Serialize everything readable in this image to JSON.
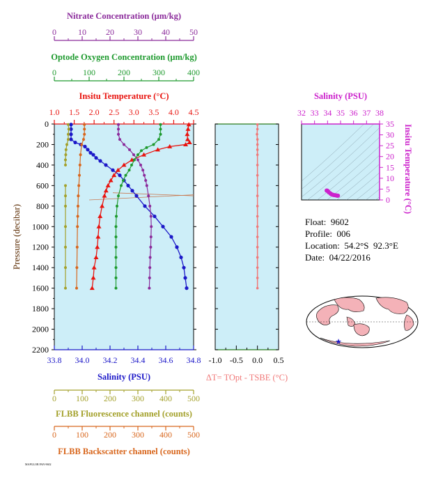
{
  "colors": {
    "nitrate": "#8b2b9b",
    "oxygen": "#1e9a2e",
    "temperature": "#e8140f",
    "salinity": "#1c18c8",
    "fluorescence": "#a3a02a",
    "backscatter": "#d8661c",
    "delta_t": "#f07878",
    "ts_frame": "#cc22cc",
    "panel_bg": "#cdeef8"
  },
  "info": {
    "float": "Float:  9602",
    "profile": "Profile:  006",
    "location": "Location:  54.2°S  92.3°E",
    "date": "Date:  04/22/2016"
  },
  "footer_text": "MAPGLOB PAN-9602",
  "chart_data": [
    {
      "type": "line",
      "ylabel": "Pressure (decibar)",
      "yticks": [
        "0",
        "200",
        "400",
        "600",
        "800",
        "1000",
        "1200",
        "1400",
        "1600",
        "1800",
        "2000",
        "2200"
      ],
      "ylim": [
        0,
        2200
      ],
      "axes": {
        "nitrate": {
          "label": "Nitrate Concentration (μm/kg)",
          "range": [
            0,
            50
          ],
          "ticks": [
            "0",
            "10",
            "20",
            "30",
            "40",
            "50"
          ]
        },
        "oxygen": {
          "label": "Optode Oxygen Concentration (μm/kg)",
          "range": [
            0,
            400
          ],
          "ticks": [
            "0",
            "100",
            "200",
            "300",
            "400"
          ]
        },
        "temperature": {
          "label": "Insitu Temperature (°C)",
          "range": [
            1.0,
            4.5
          ],
          "ticks": [
            "1.0",
            "1.5",
            "2.0",
            "2.5",
            "3.0",
            "3.5",
            "4.0",
            "4.5"
          ]
        },
        "salinity": {
          "label": "Salinity (PSU)",
          "range": [
            33.8,
            34.8
          ],
          "ticks": [
            "33.8",
            "34.0",
            "34.2",
            "34.4",
            "34.6",
            "34.8"
          ]
        },
        "fluorescence": {
          "label": "FLBB Fluorescence channel (counts)",
          "range": [
            0,
            500
          ],
          "ticks": [
            "0",
            "100",
            "200",
            "300",
            "400",
            "500"
          ]
        },
        "backscatter": {
          "label": "FLBB Backscatter channel (counts)",
          "range": [
            0,
            500
          ],
          "ticks": [
            "0",
            "100",
            "200",
            "300",
            "400",
            "500"
          ]
        }
      },
      "series": [
        {
          "key": "salinity",
          "pressure": [
            5,
            50,
            100,
            150,
            180,
            200,
            220,
            250,
            280,
            300,
            330,
            360,
            400,
            450,
            500,
            550,
            600,
            650,
            700,
            800,
            900,
            1000,
            1100,
            1200,
            1300,
            1400,
            1500,
            1600
          ],
          "values": [
            33.92,
            33.92,
            33.92,
            33.92,
            33.95,
            33.99,
            34.02,
            34.04,
            34.06,
            34.08,
            34.1,
            34.13,
            34.17,
            34.22,
            34.27,
            34.3,
            34.33,
            34.36,
            34.39,
            34.45,
            34.52,
            34.58,
            34.64,
            34.68,
            34.71,
            34.73,
            34.74,
            34.75
          ]
        },
        {
          "key": "temperature",
          "pressure": [
            5,
            50,
            100,
            150,
            180,
            200,
            220,
            250,
            300,
            350,
            400,
            450,
            500,
            550,
            600,
            650,
            700,
            800,
            900,
            1000,
            1100,
            1200,
            1300,
            1400,
            1500,
            1600
          ],
          "values": [
            4.38,
            4.36,
            4.34,
            4.35,
            4.4,
            4.3,
            3.9,
            3.6,
            3.25,
            2.95,
            2.75,
            2.6,
            2.5,
            2.42,
            2.35,
            2.3,
            2.26,
            2.2,
            2.15,
            2.12,
            2.1,
            2.08,
            2.05,
            2.0,
            1.98,
            1.95
          ]
        },
        {
          "key": "nitrate",
          "pressure": [
            5,
            50,
            100,
            150,
            200,
            250,
            300,
            350,
            400,
            450,
            500,
            550,
            600,
            700,
            800,
            900,
            1000,
            1100,
            1200,
            1300,
            1400,
            1500,
            1600
          ],
          "values": [
            23,
            23,
            23,
            23.5,
            25,
            27,
            28.5,
            30,
            31,
            31.8,
            32.3,
            32.8,
            33.2,
            33.8,
            34.3,
            34.7,
            34.8,
            34.7,
            34.6,
            34.4,
            34.3,
            34.2,
            34.1
          ]
        },
        {
          "key": "oxygen",
          "pressure": [
            5,
            50,
            100,
            150,
            200,
            230,
            260,
            300,
            350,
            400,
            450,
            500,
            550,
            600,
            700,
            800,
            900,
            1000,
            1100,
            1200,
            1300,
            1400,
            1500,
            1600
          ],
          "values": [
            305,
            305,
            305,
            300,
            285,
            265,
            250,
            240,
            230,
            222,
            215,
            205,
            198,
            192,
            184,
            180,
            178,
            177,
            177,
            177,
            177,
            177,
            177,
            177
          ]
        },
        {
          "key": "fluorescence",
          "pressure": [
            5,
            50,
            100,
            150,
            200,
            250,
            300,
            350,
            400
          ],
          "values": [
            50,
            52,
            50,
            50,
            45,
            42,
            41,
            40,
            40
          ]
        },
        {
          "key": "fluorescence",
          "pressure": [
            600,
            700,
            800,
            1000,
            1200,
            1400,
            1600
          ],
          "values": [
            40,
            40,
            40,
            40,
            40,
            40,
            40
          ]
        },
        {
          "key": "backscatter",
          "pressure": [
            5,
            50,
            100,
            150,
            200,
            300,
            400,
            500,
            600,
            700,
            800,
            900,
            1000,
            1200,
            1400,
            1600
          ],
          "values": [
            108,
            108,
            108,
            105,
            98,
            94,
            92,
            90,
            88,
            86,
            85,
            84,
            83,
            82,
            81,
            80
          ]
        }
      ]
    },
    {
      "type": "line",
      "xlabel": "ΔT= TOpt - TSBE (°C)",
      "xlim": [
        -1.0,
        0.5
      ],
      "xticks": [
        "-1.0",
        "-0.5",
        "0.0",
        "0.5"
      ],
      "ylim": [
        0,
        2200
      ],
      "series": [
        {
          "name": "",
          "pressure": [
            5,
            50,
            100,
            150,
            200,
            250,
            300,
            400,
            500,
            600,
            700,
            800,
            900,
            1000,
            1100,
            1200,
            1300,
            1400,
            1500,
            1600
          ],
          "values": [
            0.0,
            0.0,
            -0.01,
            0.0,
            0.0,
            0.0,
            0.0,
            0.0,
            0.0,
            0.0,
            0.0,
            0.0,
            0.0,
            0.0,
            0.0,
            0.0,
            0.0,
            0.0,
            0.0,
            0.0
          ]
        }
      ]
    },
    {
      "type": "scatter",
      "xlabel": "Salinity (PSU)",
      "ylabel": "Insitu Temperature (°C)",
      "xlim": [
        32,
        38
      ],
      "ylim": [
        0,
        35
      ],
      "xticks": [
        "32",
        "33",
        "34",
        "35",
        "36",
        "37",
        "38"
      ],
      "yticks": [
        "0",
        "5",
        "10",
        "15",
        "20",
        "25",
        "30",
        "35"
      ],
      "points": [
        [
          33.93,
          4.35
        ],
        [
          33.98,
          4.3
        ],
        [
          34.05,
          3.9
        ],
        [
          34.1,
          3.5
        ],
        [
          34.2,
          3.1
        ],
        [
          34.25,
          2.8
        ],
        [
          34.3,
          2.6
        ],
        [
          34.38,
          2.45
        ],
        [
          34.45,
          2.3
        ],
        [
          34.55,
          2.2
        ],
        [
          34.65,
          2.1
        ],
        [
          34.72,
          2.0
        ],
        [
          34.75,
          1.95
        ],
        [
          34.8,
          1.95
        ]
      ]
    }
  ]
}
